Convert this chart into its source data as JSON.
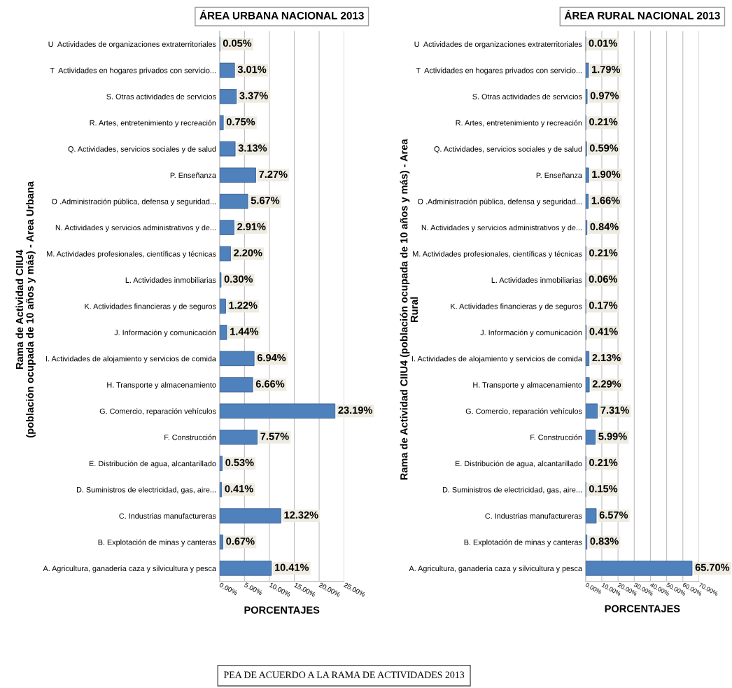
{
  "chart_data": [
    {
      "type": "bar",
      "orientation": "horizontal",
      "title": "ÁREA URBANA NACIONAL 2013",
      "xlabel": "PORCENTAJES",
      "ylabel": "Rama de Actividad CIIU4\n(población ocupada de 10 años y más) - Area Urbana",
      "categories": [
        "U  Actividades de organizaciones extraterritoriales",
        "T  Actividades en hogares privados con servicio...",
        "S. Otras actividades de servicios",
        "R. Artes, entretenimiento y recreación",
        "Q. Actividades, servicios sociales y de salud",
        "P. Enseñanza",
        "O .Administración pública, defensa y seguridad...",
        "N. Actividades y servicios administrativos y de...",
        "M. Actividades profesionales, científicas y técnicas",
        "L. Actividades inmobiliarias",
        "K. Actividades financieras y de seguros",
        "J. Información y comunicación",
        "I. Actividades de alojamiento y servicios de comida",
        "H. Transporte y almacenamiento",
        "G. Comercio, reparación vehículos",
        "F. Construcción",
        "E. Distribución de agua, alcantarillado",
        "D. Suministros de electricidad, gas, aire...",
        "C. Industrias manufactureras",
        "B. Explotación de minas y canteras",
        "A. Agricultura, ganadería caza y silvicultura y pesca"
      ],
      "values": [
        0.05,
        3.01,
        3.37,
        0.75,
        3.13,
        7.27,
        5.67,
        2.91,
        2.2,
        0.3,
        1.22,
        1.44,
        6.94,
        6.66,
        23.19,
        7.57,
        0.53,
        0.41,
        12.32,
        0.67,
        10.41
      ],
      "value_labels": [
        "0.05%",
        "3.01%",
        "3.37%",
        "0.75%",
        "3.13%",
        "7.27%",
        "5.67%",
        "2.91%",
        "2.20%",
        "0.30%",
        "1.22%",
        "1.44%",
        "6.94%",
        "6.66%",
        "23.19%",
        "7.57%",
        "0.53%",
        "0.41%",
        "12.32%",
        "0.67%",
        "10.41%"
      ],
      "color": "#4f81bd",
      "xlim": [
        0,
        25
      ],
      "xticks": [
        {
          "value": 0,
          "label": "0.00%"
        },
        {
          "value": 5,
          "label": "5.00%"
        },
        {
          "value": 10,
          "label": "10.00%"
        },
        {
          "value": 15,
          "label": "15.00%"
        },
        {
          "value": 20,
          "label": "20.00%"
        },
        {
          "value": 25,
          "label": "25.00%"
        }
      ],
      "grid": "x"
    },
    {
      "type": "bar",
      "orientation": "horizontal",
      "title": "ÁREA RURAL NACIONAL 2013",
      "xlabel": "PORCENTAJES",
      "ylabel": "Rama de Actividad CIIU4 (población ocupada de 10 años y más) - Area\nRural",
      "categories": [
        "U  Actividades de organizaciones extraterritoriales",
        "T  Actividades en hogares privados con servicio...",
        "S. Otras actividades de servicios",
        "R. Artes, entretenimiento y recreación",
        "Q. Actividades, servicios sociales y de salud",
        "P. Enseñanza",
        "O .Administración pública, defensa y seguridad...",
        "N. Actividades y servicios administrativos y de...",
        "M. Actividades profesionales, científicas y técnicas",
        "L. Actividades inmobiliarias",
        "K. Actividades financieras y de seguros",
        "J. Información y comunicación",
        "I. Actividades de alojamiento y servicios de comida",
        "H. Transporte y almacenamiento",
        "G. Comercio, reparación vehículos",
        "F. Construcción",
        "E. Distribución de agua, alcantarillado",
        "D. Suministros de electricidad, gas, aire...",
        "C. Industrias manufactureras",
        "B. Explotación de minas y canteras",
        "A. Agricultura, ganadería caza y silvicultura y pesca"
      ],
      "values": [
        0.01,
        1.79,
        0.97,
        0.21,
        0.59,
        1.9,
        1.66,
        0.84,
        0.21,
        0.06,
        0.17,
        0.41,
        2.13,
        2.29,
        7.31,
        5.99,
        0.21,
        0.15,
        6.57,
        0.83,
        65.7
      ],
      "value_labels": [
        "0.01%",
        "1.79%",
        "0.97%",
        "0.21%",
        "0.59%",
        "1.90%",
        "1.66%",
        "0.84%",
        "0.21%",
        "0.06%",
        "0.17%",
        "0.41%",
        "2.13%",
        "2.29%",
        "7.31%",
        "5.99%",
        "0.21%",
        "0.15%",
        "6.57%",
        "0.83%",
        "65.70%"
      ],
      "color": "#4f81bd",
      "xlim": [
        0,
        70
      ],
      "xticks": [
        {
          "value": 0,
          "label": "0.00%"
        },
        {
          "value": 10,
          "label": "10.00%"
        },
        {
          "value": 20,
          "label": "20.00%"
        },
        {
          "value": 30,
          "label": "30.00%"
        },
        {
          "value": 40,
          "label": "40.00%"
        },
        {
          "value": 50,
          "label": "50.00%"
        },
        {
          "value": 60,
          "label": "60.00%"
        },
        {
          "value": 70,
          "label": "70.00%"
        }
      ],
      "grid": "x",
      "annotations": [
        "PEA DE ACUERDO A LA RAMA DE ACTIVIDADES 2013"
      ]
    }
  ]
}
